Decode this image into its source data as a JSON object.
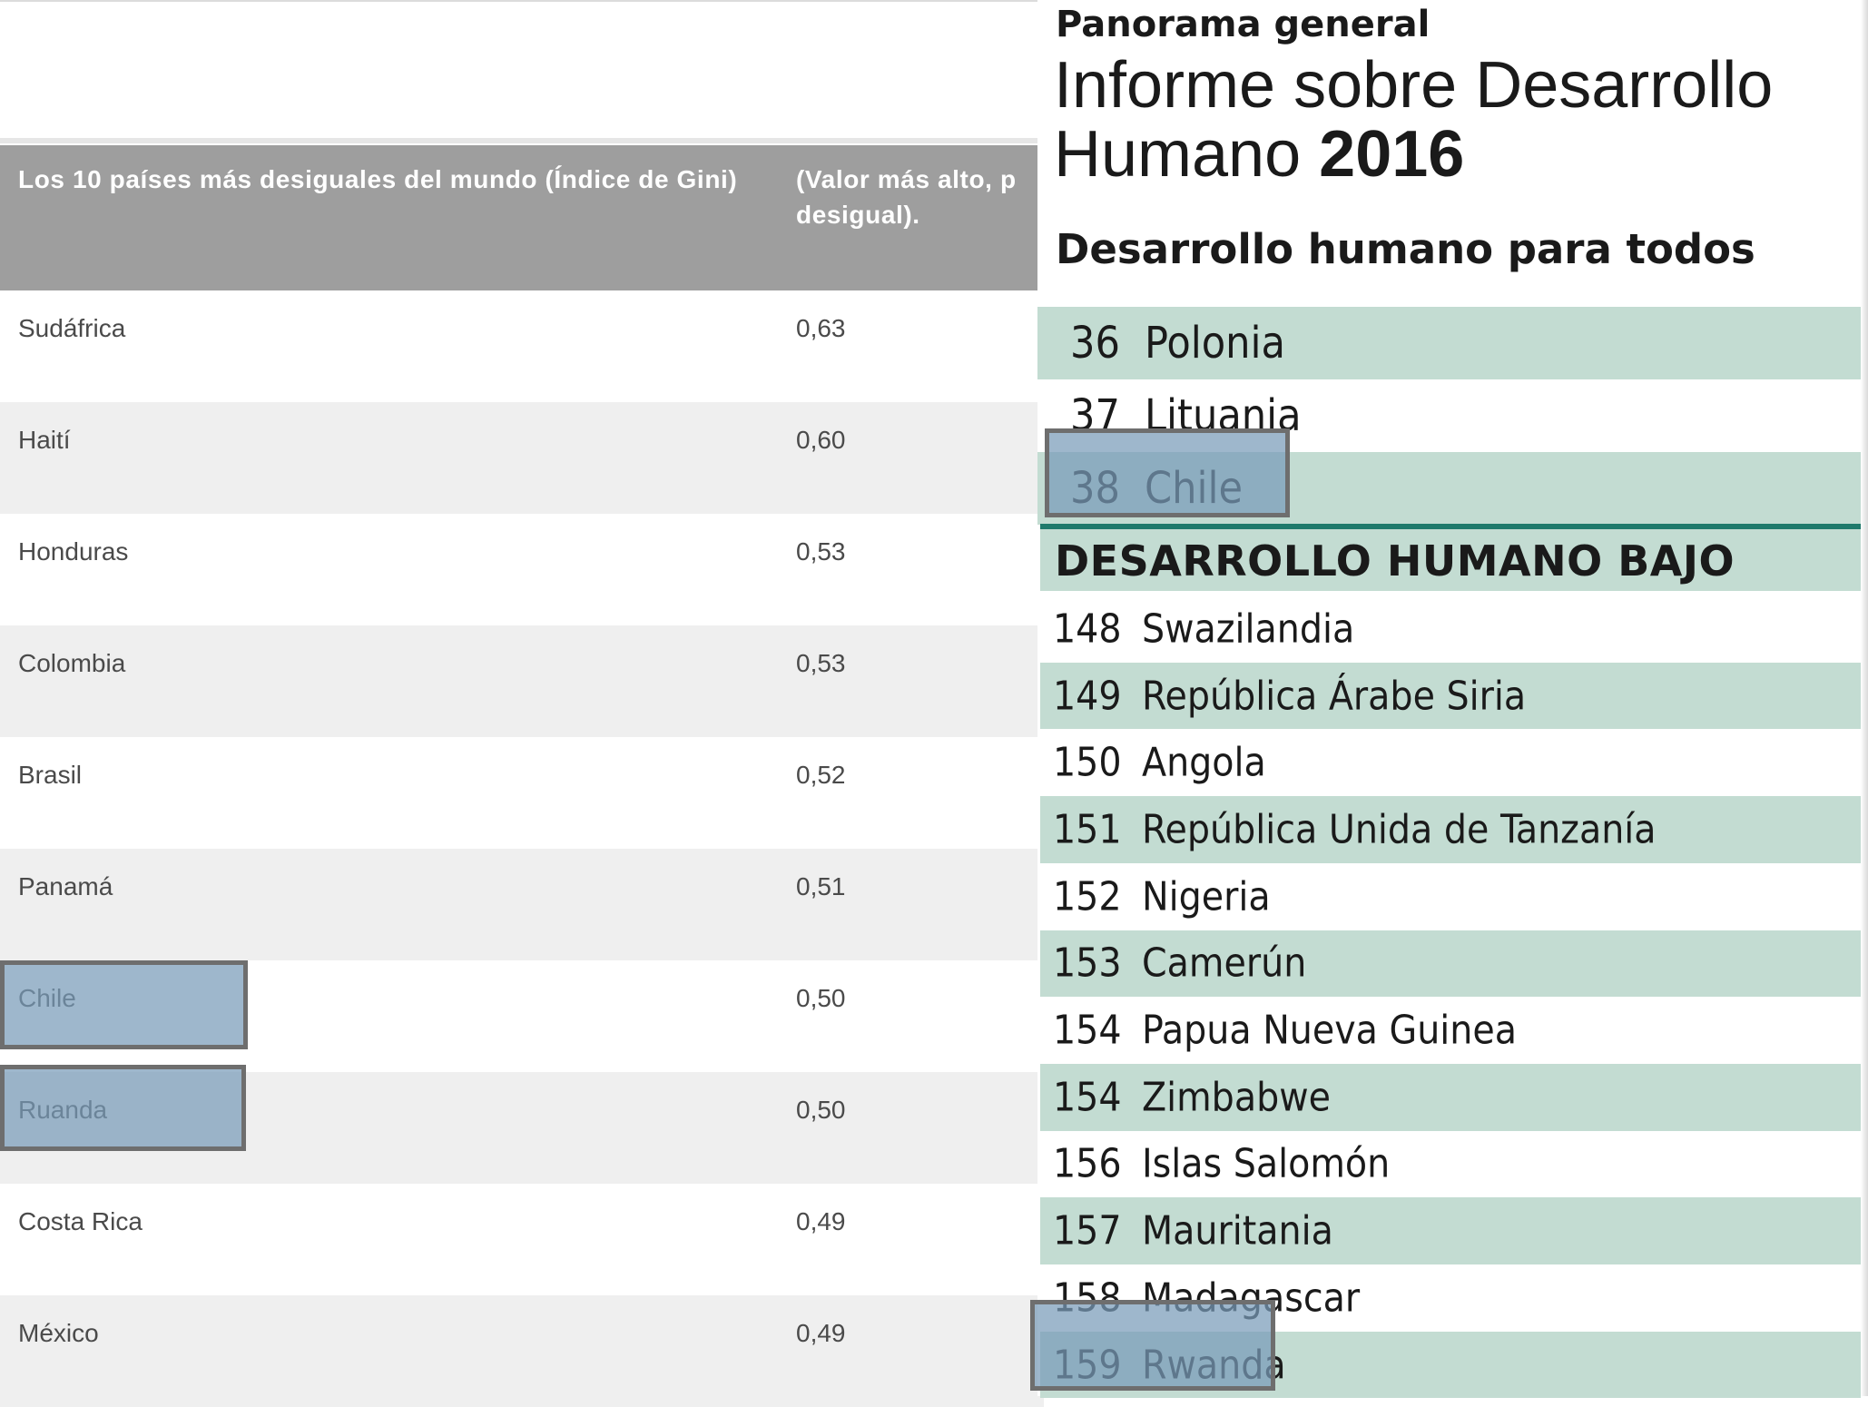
{
  "gini_table": {
    "header_country": "Los 10 países más desiguales del mundo (Índice de Gini)",
    "header_value": "(Valor más alto, p\ndesigual).",
    "rows": [
      {
        "country": "Sudáfrica",
        "value": "0,63"
      },
      {
        "country": "Haití",
        "value": "0,60"
      },
      {
        "country": "Honduras",
        "value": "0,53"
      },
      {
        "country": "Colombia",
        "value": "0,53"
      },
      {
        "country": "Brasil",
        "value": "0,52"
      },
      {
        "country": "Panamá",
        "value": "0,51"
      },
      {
        "country": "Chile",
        "value": "0,50"
      },
      {
        "country": "Ruanda",
        "value": "0,50"
      },
      {
        "country": "Costa Rica",
        "value": "0,49"
      },
      {
        "country": "México",
        "value": "0,49"
      }
    ]
  },
  "hdr": {
    "kicker": "Panorama general",
    "title_main": "Informe sobre Desarrollo Humano",
    "title_year": "2016",
    "subtitle": "Desarrollo humano para todos",
    "top_rows": [
      {
        "rank": "36",
        "country": "Polonia"
      },
      {
        "rank": "37",
        "country": "Lituania"
      },
      {
        "rank": "38",
        "country": "Chile"
      }
    ],
    "section_label": "DESARROLLO HUMANO BAJO",
    "low_rows": [
      {
        "rank": "148",
        "country": "Swazilandia"
      },
      {
        "rank": "149",
        "country": "República Árabe Siria"
      },
      {
        "rank": "150",
        "country": "Angola"
      },
      {
        "rank": "151",
        "country": "República Unida de Tanzanía"
      },
      {
        "rank": "152",
        "country": "Nigeria"
      },
      {
        "rank": "153",
        "country": "Camerún"
      },
      {
        "rank": "154",
        "country": "Papua Nueva Guinea"
      },
      {
        "rank": "154",
        "country": "Zimbabwe"
      },
      {
        "rank": "156",
        "country": "Islas Salomón"
      },
      {
        "rank": "157",
        "country": "Mauritania"
      },
      {
        "rank": "158",
        "country": "Madagascar"
      },
      {
        "rank": "159",
        "country": "Rwanda"
      }
    ]
  },
  "colors": {
    "header_gray": "#9e9e9e",
    "row_alt": "#efefef",
    "hdr_green": "#c3dcd2",
    "hdr_divider": "#1f7a6c",
    "highlight_blue": "#789bb9"
  }
}
